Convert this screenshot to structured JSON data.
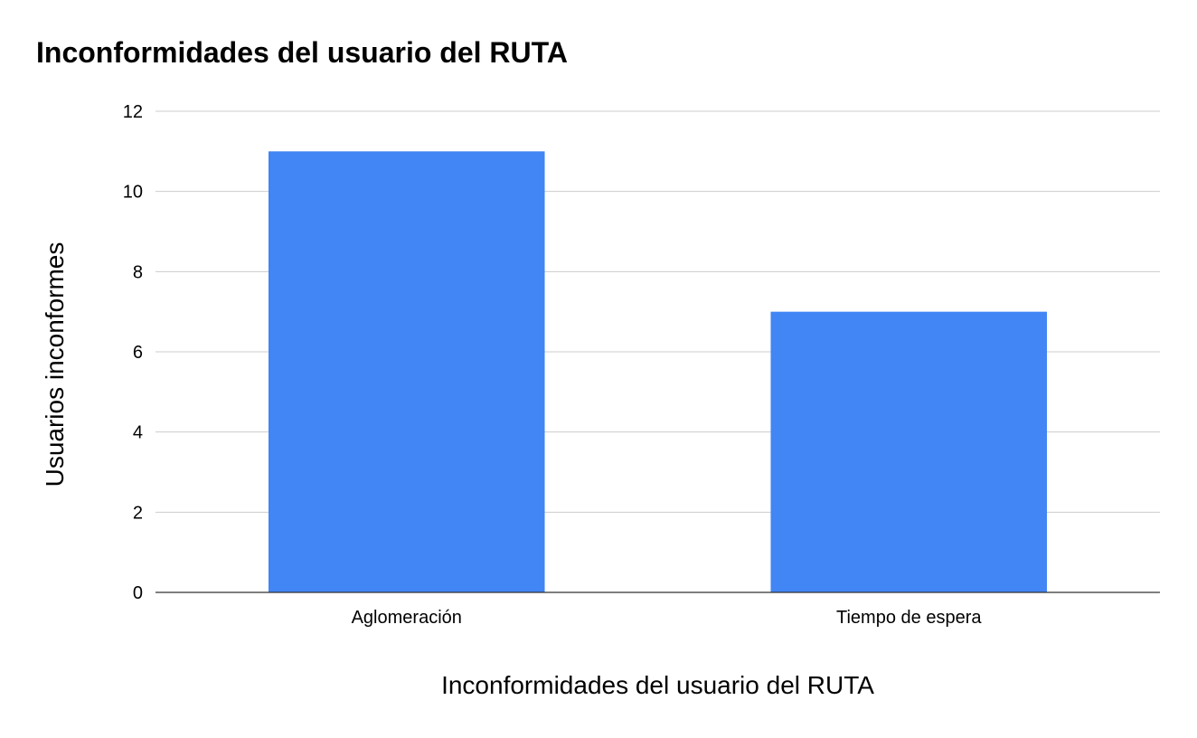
{
  "chart_data": {
    "type": "bar",
    "title": "Inconformidades del usuario del RUTA",
    "xlabel": "Inconformidades del usuario del RUTA",
    "ylabel": "Usuarios inconformes",
    "categories": [
      "Aglomeración",
      "Tiempo de espera"
    ],
    "values": [
      11,
      7
    ],
    "ylim": [
      0,
      12
    ],
    "yticks": [
      0,
      2,
      4,
      6,
      8,
      10,
      12
    ],
    "grid": true,
    "legend": "none",
    "bar_color": "#4285f4"
  }
}
